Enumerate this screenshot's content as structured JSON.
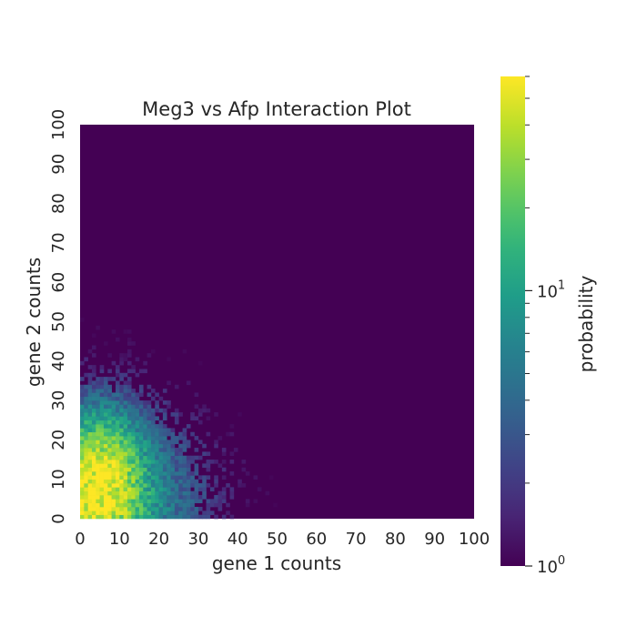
{
  "chart_data": {
    "type": "heatmap",
    "title": "Meg3 vs Afp Interaction Plot",
    "xlabel": "gene 1 counts",
    "ylabel": "gene 2 counts",
    "xlim": [
      0,
      100
    ],
    "ylim": [
      0,
      100
    ],
    "x_ticks": [
      "0",
      "10",
      "20",
      "30",
      "40",
      "50",
      "60",
      "70",
      "80",
      "90",
      "100"
    ],
    "y_ticks": [
      "0",
      "10",
      "20",
      "30",
      "40",
      "50",
      "60",
      "70",
      "80",
      "90",
      "100"
    ],
    "bins": 100,
    "background_value": 1,
    "colorbar": {
      "label": "probability",
      "scale": "log",
      "range": [
        1,
        60
      ],
      "major_ticks": [
        {
          "value": 1,
          "label": "10^0"
        },
        {
          "value": 10,
          "label": "10^1"
        }
      ],
      "minor_ticks": [
        2,
        3,
        4,
        5,
        6,
        7,
        8,
        9,
        20,
        30,
        40,
        50,
        60
      ]
    },
    "density_peak": {
      "x": 5,
      "y": 8,
      "max_value": 55
    },
    "colormap": [
      "#440154",
      "#482878",
      "#3e4989",
      "#31688e",
      "#26828e",
      "#1f9e89",
      "#35b779",
      "#6ece58",
      "#b5de2b",
      "#fde725"
    ]
  }
}
